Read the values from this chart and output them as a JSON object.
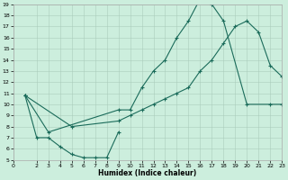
{
  "title": "",
  "xlabel": "Humidex (Indice chaleur)",
  "bg_color": "#cceedd",
  "line_color": "#1a6b5a",
  "xlim": [
    0,
    23
  ],
  "ylim": [
    5,
    19
  ],
  "xticks": [
    0,
    2,
    3,
    4,
    5,
    6,
    7,
    8,
    9,
    10,
    11,
    12,
    13,
    14,
    15,
    16,
    17,
    18,
    19,
    20,
    21,
    22,
    23
  ],
  "yticks": [
    5,
    6,
    7,
    8,
    9,
    10,
    11,
    12,
    13,
    14,
    15,
    16,
    17,
    18,
    19
  ],
  "curve1_x": [
    1,
    2,
    3,
    4,
    5,
    6,
    7,
    8,
    9
  ],
  "curve1_y": [
    10.8,
    7.0,
    7.0,
    6.2,
    5.5,
    5.2,
    5.2,
    5.2,
    7.5
  ],
  "curve2_x": [
    1,
    3,
    9,
    10,
    11,
    12,
    13,
    14,
    15,
    16,
    17,
    18,
    20,
    22,
    23
  ],
  "curve2_y": [
    10.8,
    7.5,
    9.5,
    9.5,
    11.5,
    13.0,
    14.0,
    16.0,
    17.5,
    19.5,
    19.0,
    17.5,
    10.0,
    10.0,
    10.0
  ],
  "curve3_x": [
    1,
    5,
    9,
    10,
    11,
    12,
    13,
    14,
    15,
    16,
    17,
    18,
    19,
    20,
    21,
    22,
    23
  ],
  "curve3_y": [
    10.8,
    8.0,
    8.5,
    9.0,
    9.5,
    10.0,
    10.5,
    11.0,
    11.5,
    13.0,
    14.0,
    15.5,
    17.0,
    17.5,
    16.5,
    13.5,
    12.5
  ],
  "marker": "+"
}
